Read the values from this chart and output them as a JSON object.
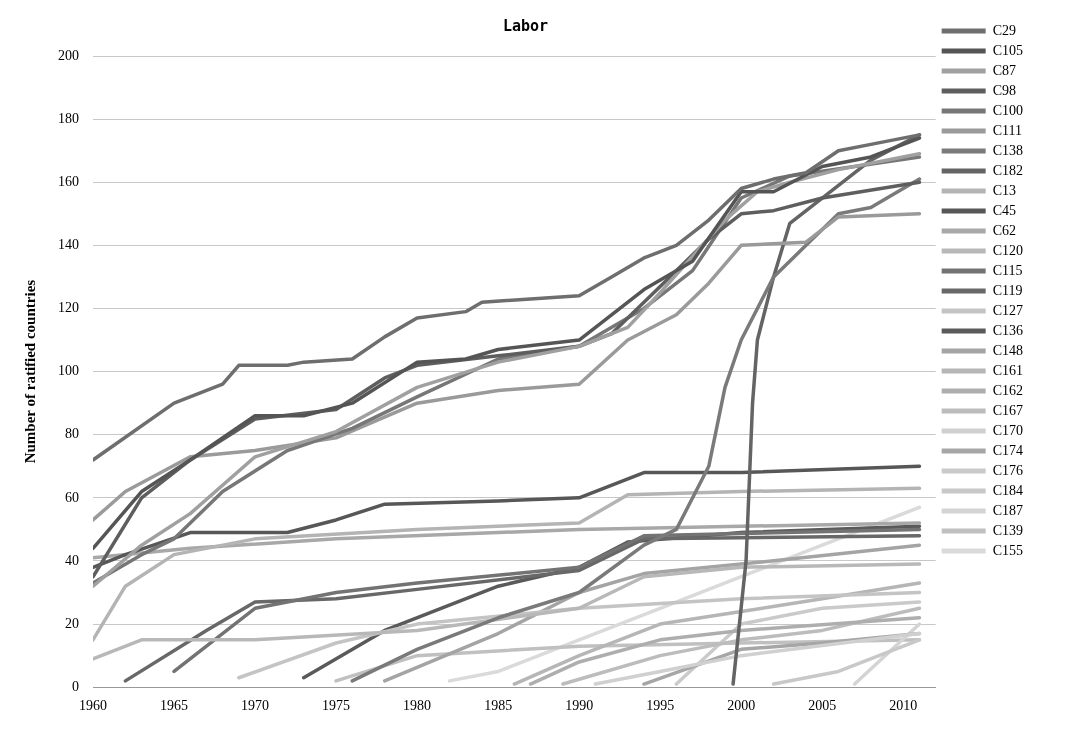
{
  "chart_data": {
    "type": "line",
    "title": "Labor",
    "ylabel": "Number of ratified countries",
    "xlim": [
      1960,
      2012
    ],
    "xticks": [
      1960,
      1965,
      1970,
      1975,
      1980,
      1985,
      1990,
      1995,
      2000,
      2005,
      2010
    ],
    "ylim": [
      0,
      200
    ],
    "yticks": [
      0,
      20,
      40,
      60,
      80,
      100,
      120,
      140,
      160,
      180,
      200
    ],
    "grid": "y",
    "legend": "right",
    "marker": "none",
    "line_style": "solid",
    "series": [
      {
        "name": "C29",
        "color": "#6e6e6e",
        "x": [
          1960,
          1965,
          1968,
          1969,
          1972,
          1973,
          1976,
          1978,
          1980,
          1983,
          1984,
          1990,
          1992,
          1994,
          1996,
          1998,
          2000,
          2002,
          2004,
          2006,
          2008,
          2011
        ],
        "values": [
          72,
          90,
          96,
          102,
          102,
          103,
          104,
          111,
          117,
          119,
          122,
          124,
          130,
          136,
          140,
          148,
          158,
          161,
          163,
          170,
          172,
          175
        ]
      },
      {
        "name": "C105",
        "color": "#555555",
        "x": [
          1960,
          1963,
          1966,
          1970,
          1973,
          1976,
          1980,
          1983,
          1985,
          1990,
          1992,
          1994,
          1997,
          2000,
          2002,
          2005,
          2008,
          2011
        ],
        "values": [
          44,
          62,
          72,
          86,
          86,
          90,
          103,
          104,
          107,
          110,
          118,
          126,
          135,
          157,
          157,
          165,
          168,
          174
        ]
      },
      {
        "name": "C87",
        "color": "#a0a0a0",
        "x": [
          1960,
          1963,
          1966,
          1970,
          1975,
          1980,
          1985,
          1990,
          1993,
          1995,
          1999,
          2001,
          2003,
          2006,
          2011
        ],
        "values": [
          32,
          45,
          55,
          73,
          81,
          95,
          103,
          108,
          114,
          125,
          148,
          157,
          160,
          164,
          169
        ]
      },
      {
        "name": "C98",
        "color": "#5e5e5e",
        "x": [
          1960,
          1963,
          1966,
          1970,
          1975,
          1978,
          1980,
          1985,
          1990,
          1992,
          1995,
          1998,
          2000,
          2002,
          2005,
          2011
        ],
        "values": [
          35,
          60,
          72,
          85,
          88,
          98,
          102,
          105,
          108,
          112,
          127,
          142,
          150,
          151,
          155,
          160
        ]
      },
      {
        "name": "C100",
        "color": "#777777",
        "x": [
          1960,
          1963,
          1965,
          1968,
          1972,
          1976,
          1980,
          1985,
          1990,
          1994,
          1997,
          2000,
          2003,
          2011
        ],
        "values": [
          33,
          42,
          47,
          62,
          75,
          82,
          92,
          104,
          108,
          120,
          132,
          155,
          162,
          168
        ]
      },
      {
        "name": "C111",
        "color": "#9a9a9a",
        "x": [
          1960,
          1962,
          1966,
          1970,
          1975,
          1980,
          1985,
          1990,
          1993,
          1996,
          1998,
          2000,
          2004,
          2006,
          2011
        ],
        "values": [
          53,
          62,
          73,
          75,
          79,
          90,
          94,
          96,
          110,
          118,
          128,
          140,
          141,
          149,
          150
        ]
      },
      {
        "name": "C138",
        "color": "#7a7a7a",
        "x": [
          1976,
          1980,
          1985,
          1990,
          1994,
          1996,
          1998,
          1999,
          2000,
          2002,
          2004,
          2006,
          2008,
          2011
        ],
        "values": [
          2,
          12,
          22,
          30,
          45,
          50,
          70,
          95,
          110,
          130,
          140,
          150,
          152,
          161
        ]
      },
      {
        "name": "C182",
        "color": "#646464",
        "x": [
          1999.5,
          2000.3,
          2000.7,
          2001,
          2002,
          2003,
          2005,
          2008,
          2011
        ],
        "values": [
          1,
          40,
          90,
          110,
          130,
          147,
          155,
          167,
          175
        ]
      },
      {
        "name": "C13",
        "color": "#b4b4b4",
        "x": [
          1960,
          1962,
          1965,
          1970,
          1980,
          1990,
          1993,
          2000,
          2011
        ],
        "values": [
          15,
          32,
          42,
          47,
          50,
          52,
          61,
          62,
          63
        ]
      },
      {
        "name": "C45",
        "color": "#575757",
        "x": [
          1960,
          1962,
          1966,
          1972,
          1975,
          1978,
          1985,
          1990,
          1994,
          2000,
          2011
        ],
        "values": [
          38,
          42,
          49,
          49,
          53,
          58,
          59,
          60,
          68,
          68,
          70
        ]
      },
      {
        "name": "C62",
        "color": "#a8a8a8",
        "x": [
          1960,
          1966,
          1975,
          1985,
          1990,
          2000,
          2011
        ],
        "values": [
          41,
          44,
          47,
          49,
          50,
          51,
          52
        ]
      },
      {
        "name": "C120",
        "color": "#b8b8b8",
        "x": [
          1960,
          1963,
          1970,
          1980,
          1990,
          1994,
          2000,
          2011
        ],
        "values": [
          9,
          15,
          15,
          18,
          25,
          35,
          38,
          39
        ]
      },
      {
        "name": "C115",
        "color": "#737373",
        "x": [
          1965,
          1970,
          1975,
          1980,
          1990,
          1994,
          2011
        ],
        "values": [
          5,
          25,
          30,
          33,
          38,
          48,
          50
        ]
      },
      {
        "name": "C119",
        "color": "#686868",
        "x": [
          1962,
          1967,
          1970,
          1975,
          1980,
          1990,
          1994,
          2011
        ],
        "values": [
          2,
          18,
          27,
          28,
          31,
          37,
          47,
          48
        ]
      },
      {
        "name": "C127",
        "color": "#c4c4c4",
        "x": [
          1969,
          1975,
          1980,
          1990,
          2000,
          2011
        ],
        "values": [
          3,
          14,
          20,
          25,
          28,
          30
        ]
      },
      {
        "name": "C136",
        "color": "#5a5a5a",
        "x": [
          1973,
          1978,
          1985,
          1990,
          1993,
          2000,
          2011
        ],
        "values": [
          3,
          18,
          32,
          38,
          46,
          49,
          51
        ]
      },
      {
        "name": "C148",
        "color": "#a4a4a4",
        "x": [
          1978,
          1985,
          1990,
          1994,
          2000,
          2011
        ],
        "values": [
          2,
          17,
          30,
          36,
          39,
          45
        ]
      },
      {
        "name": "C161",
        "color": "#b6b6b6",
        "x": [
          1986,
          1990,
          1995,
          2000,
          2005,
          2011
        ],
        "values": [
          1,
          10,
          20,
          24,
          28,
          33
        ]
      },
      {
        "name": "C162",
        "color": "#aeaeae",
        "x": [
          1987,
          1990,
          1995,
          2000,
          2011
        ],
        "values": [
          1,
          8,
          15,
          18,
          22
        ]
      },
      {
        "name": "C167",
        "color": "#bcbcbc",
        "x": [
          1989,
          1995,
          2000,
          2005,
          2011
        ],
        "values": [
          1,
          10,
          15,
          18,
          25
        ]
      },
      {
        "name": "C170",
        "color": "#d0d0d0",
        "x": [
          1991,
          1995,
          2000,
          2011
        ],
        "values": [
          1,
          5,
          10,
          17
        ]
      },
      {
        "name": "C174",
        "color": "#a6a6a6",
        "x": [
          1994,
          2000,
          2005,
          2011
        ],
        "values": [
          1,
          12,
          14,
          17
        ]
      },
      {
        "name": "C176",
        "color": "#cacaca",
        "x": [
          1996,
          2000,
          2005,
          2011
        ],
        "values": [
          1,
          20,
          25,
          27
        ]
      },
      {
        "name": "C184",
        "color": "#c8c8c8",
        "x": [
          2002,
          2006,
          2011
        ],
        "values": [
          1,
          5,
          15
        ]
      },
      {
        "name": "C187",
        "color": "#d4d4d4",
        "x": [
          2007,
          2011
        ],
        "values": [
          1,
          20
        ]
      },
      {
        "name": "C139",
        "color": "#c0c0c0",
        "x": [
          1975,
          1980,
          1990,
          2000,
          2011
        ],
        "values": [
          2,
          10,
          13,
          14,
          15
        ]
      },
      {
        "name": "C155",
        "color": "#dadada",
        "x": [
          1982,
          1985,
          1990,
          1995,
          2000,
          2005,
          2011
        ],
        "values": [
          2,
          5,
          15,
          25,
          35,
          45,
          57
        ]
      }
    ]
  }
}
